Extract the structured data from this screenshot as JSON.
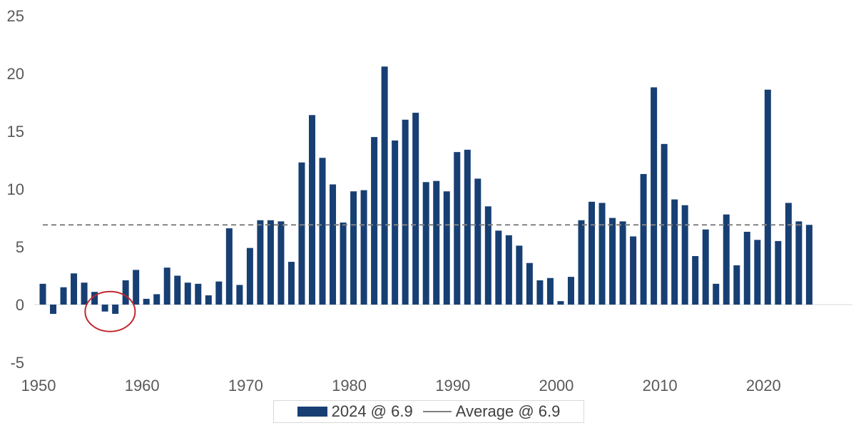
{
  "chart_data": {
    "type": "bar",
    "title": "",
    "xlabel": "",
    "ylabel": "",
    "ylim": [
      -5,
      25
    ],
    "yticks": [
      -5,
      0,
      5,
      10,
      15,
      20,
      25
    ],
    "xlim": [
      1950,
      2029
    ],
    "xticks": [
      1950,
      1960,
      1970,
      1980,
      1990,
      2000,
      2010,
      2020
    ],
    "grid": false,
    "legend_position": "bottom",
    "colors": {
      "bars": "#173f73",
      "average": "#808080",
      "annotation": "#c0282e"
    },
    "series": [
      {
        "name": "2024 @ 6.9",
        "x": [
          1950,
          1951,
          1952,
          1953,
          1954,
          1955,
          1956,
          1957,
          1958,
          1959,
          1960,
          1961,
          1962,
          1963,
          1964,
          1965,
          1966,
          1967,
          1968,
          1969,
          1970,
          1971,
          1972,
          1973,
          1974,
          1975,
          1976,
          1977,
          1978,
          1979,
          1980,
          1981,
          1982,
          1983,
          1984,
          1985,
          1986,
          1987,
          1988,
          1989,
          1990,
          1991,
          1992,
          1993,
          1994,
          1995,
          1996,
          1997,
          1998,
          1999,
          2000,
          2001,
          2002,
          2003,
          2004,
          2005,
          2006,
          2007,
          2008,
          2009,
          2010,
          2011,
          2012,
          2013,
          2014,
          2015,
          2016,
          2017,
          2018,
          2019,
          2020,
          2021,
          2022,
          2023,
          2024
        ],
        "values": [
          1.8,
          -0.8,
          1.5,
          2.7,
          1.9,
          1.1,
          -0.6,
          -0.8,
          2.1,
          3.0,
          0.5,
          0.9,
          3.2,
          2.5,
          1.9,
          1.8,
          0.8,
          2.0,
          6.6,
          1.7,
          4.9,
          7.3,
          7.3,
          7.2,
          3.7,
          12.3,
          16.4,
          12.7,
          10.4,
          7.1,
          9.8,
          9.9,
          14.5,
          20.6,
          14.2,
          16.0,
          16.6,
          10.6,
          10.7,
          9.8,
          13.2,
          13.4,
          10.9,
          8.5,
          6.4,
          6.0,
          5.1,
          3.6,
          2.1,
          2.3,
          0.3,
          2.4,
          7.3,
          8.9,
          8.8,
          7.5,
          7.2,
          5.9,
          11.3,
          18.8,
          13.9,
          9.1,
          8.6,
          4.2,
          6.5,
          1.8,
          7.8,
          3.4,
          6.3,
          5.6,
          18.6,
          5.5,
          8.8,
          7.2,
          6.9
        ]
      },
      {
        "name": "Average @ 6.9",
        "value": 6.9
      }
    ],
    "annotations": [
      {
        "type": "circle",
        "label": "",
        "around_x": [
          1956,
          1957
        ]
      }
    ]
  },
  "legend": {
    "bar_label": "2024 @ 6.9",
    "line_label": "Average @ 6.9"
  }
}
